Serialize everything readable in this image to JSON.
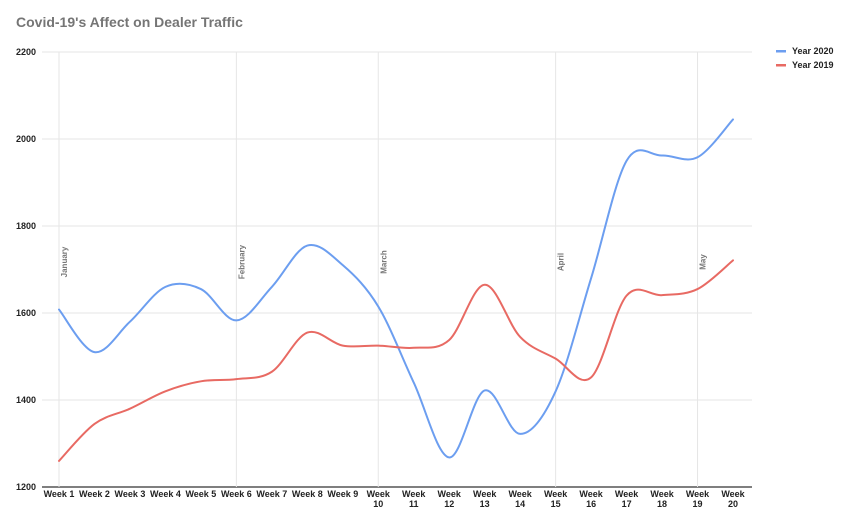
{
  "chart_data": {
    "type": "line",
    "title": "Covid-19's Affect on Dealer Traffic",
    "categories": [
      [
        "Week 1"
      ],
      [
        "Week 2"
      ],
      [
        "Week 3"
      ],
      [
        "Week 4"
      ],
      [
        "Week 5"
      ],
      [
        "Week 6"
      ],
      [
        "Week 7"
      ],
      [
        "Week 8"
      ],
      [
        "Week 9"
      ],
      [
        "Week",
        "10"
      ],
      [
        "Week",
        "11"
      ],
      [
        "Week",
        "12"
      ],
      [
        "Week",
        "13"
      ],
      [
        "Week",
        "14"
      ],
      [
        "Week",
        "15"
      ],
      [
        "Week",
        "16"
      ],
      [
        "Week",
        "17"
      ],
      [
        "Week",
        "18"
      ],
      [
        "Week",
        "19"
      ],
      [
        "Week",
        "20"
      ]
    ],
    "ylim": [
      1200,
      2200
    ],
    "yticks": [
      1200,
      1400,
      1600,
      1800,
      2000,
      2200
    ],
    "grid": true,
    "legend_position": "top-right",
    "series": [
      {
        "name": "Year 2020",
        "color": "#6c9ef0",
        "values": [
          1608,
          1510,
          1580,
          1660,
          1655,
          1583,
          1660,
          1755,
          1710,
          1615,
          1440,
          1268,
          1422,
          1322,
          1420,
          1680,
          1950,
          1962,
          1958,
          2045
        ]
      },
      {
        "name": "Year 2019",
        "color": "#e86a63",
        "values": [
          1260,
          1345,
          1380,
          1420,
          1443,
          1448,
          1465,
          1555,
          1525,
          1525,
          1520,
          1538,
          1665,
          1545,
          1495,
          1452,
          1640,
          1641,
          1655,
          1721
        ]
      }
    ],
    "annotations": [
      {
        "text": "January",
        "x_index": 0
      },
      {
        "text": "February",
        "x_index": 5
      },
      {
        "text": "March",
        "x_index": 9
      },
      {
        "text": "April",
        "x_index": 14
      },
      {
        "text": "May",
        "x_index": 18
      }
    ]
  }
}
